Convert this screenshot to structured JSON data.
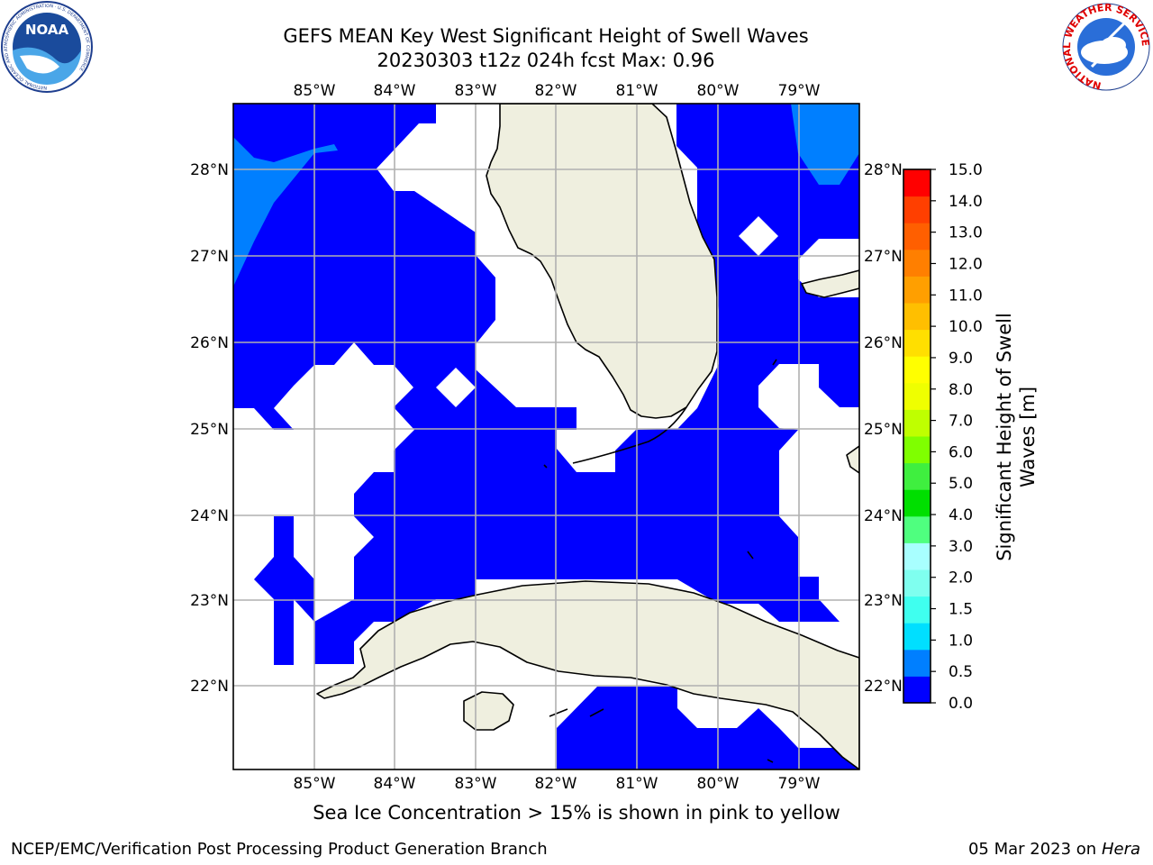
{
  "header": {
    "title_line1": "GEFS MEAN Key West Significant Height of Swell Waves",
    "title_line2": "20230303 t12z 024h fcst   Max: 0.96"
  },
  "map": {
    "lon_labels": [
      "85°W",
      "84°W",
      "83°W",
      "82°W",
      "81°W",
      "80°W",
      "79°W"
    ],
    "lat_labels": [
      "28°N",
      "27°N",
      "26°N",
      "25°N",
      "24°N",
      "23°N",
      "22°N"
    ],
    "lon_range": [
      -86.0,
      -78.25
    ],
    "lat_range": [
      21.05,
      28.75
    ],
    "colors": {
      "land": "#efefdf",
      "swell_low": "#0000ff",
      "swell_mid": "#007fff",
      "grid": "#b0b0b0"
    }
  },
  "colorbar": {
    "label_line1": "Significant Height of Swell",
    "label_line2": "Waves [m]",
    "ticks": [
      "15.0",
      "14.0",
      "13.0",
      "12.0",
      "11.0",
      "10.0",
      "9.0",
      "8.0",
      "7.0",
      "6.0",
      "5.0",
      "4.0",
      "3.0",
      "2.0",
      "1.5",
      "1.0",
      "0.5",
      "0.0"
    ],
    "colors_bottom_to_top": [
      "#0000ff",
      "#007fff",
      "#00dfff",
      "#3fffef",
      "#7fffef",
      "#a8ffff",
      "#4fff7f",
      "#00df00",
      "#3fef3f",
      "#7fff00",
      "#bfff00",
      "#efff00",
      "#ffff00",
      "#ffdf00",
      "#ffbf00",
      "#ff9f00",
      "#ff7f00",
      "#ff5f00",
      "#ff3f00",
      "#ff0000"
    ]
  },
  "footnote": "Sea Ice Concentration > 15% is shown in pink to yellow",
  "credits": {
    "left": "NCEP/EMC/Verification Post Processing Product Generation Branch",
    "date": "05 Mar 2023",
    "on": "on",
    "machine": "Hera"
  },
  "logos": {
    "noaa_text": "NOAA",
    "noaa_ring": "NATIONAL OCEANIC AND ATMOSPHERIC ADMINISTRATION · U.S. DEPARTMENT OF COMMERCE",
    "nws_ring": "NATIONAL WEATHER SERVICE"
  }
}
